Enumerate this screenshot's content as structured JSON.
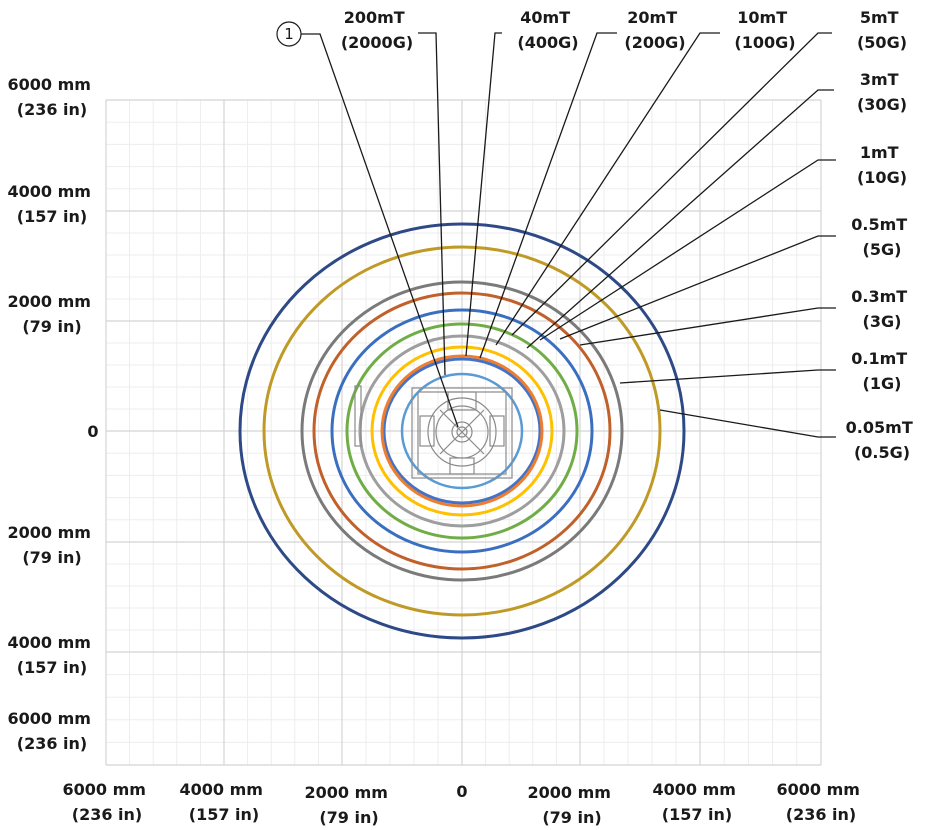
{
  "callout": {
    "number": "1"
  },
  "field_labels": [
    {
      "id": "200mt",
      "line1": "200mT",
      "line2": "(2000G)"
    },
    {
      "id": "40mt",
      "line1": "40mT",
      "line2": "(400G)"
    },
    {
      "id": "20mt",
      "line1": "20mT",
      "line2": "(200G)"
    },
    {
      "id": "10mt",
      "line1": "10mT",
      "line2": "(100G)"
    },
    {
      "id": "5mt",
      "line1": "5mT",
      "line2": "(50G)"
    },
    {
      "id": "3mt",
      "line1": "3mT",
      "line2": "(30G)"
    },
    {
      "id": "1mt",
      "line1": "1mT",
      "line2": "(10G)"
    },
    {
      "id": "05mt",
      "line1": "0.5mT",
      "line2": "(5G)"
    },
    {
      "id": "03mt",
      "line1": "0.3mT",
      "line2": "(3G)"
    },
    {
      "id": "01mt",
      "line1": "0.1mT",
      "line2": "(1G)"
    },
    {
      "id": "005mt",
      "line1": "0.05mT",
      "line2": "(0.5G)"
    }
  ],
  "y_axis": [
    {
      "id": "p6000",
      "line1": "6000 mm",
      "line2": "(236 in)"
    },
    {
      "id": "p4000",
      "line1": "4000 mm",
      "line2": "(157 in)"
    },
    {
      "id": "p2000",
      "line1": "2000 mm",
      "line2": "(79 in)"
    },
    {
      "id": "zero",
      "line1": "0",
      "line2": ""
    },
    {
      "id": "n2000",
      "line1": "2000 mm",
      "line2": "(79 in)"
    },
    {
      "id": "n4000",
      "line1": "4000 mm",
      "line2": "(157 in)"
    },
    {
      "id": "n6000",
      "line1": "6000 mm",
      "line2": "(236 in)"
    }
  ],
  "x_axis": [
    {
      "id": "n6000",
      "line1": "6000 mm",
      "line2": "(236 in)"
    },
    {
      "id": "n4000",
      "line1": "4000 mm",
      "line2": "(157 in)"
    },
    {
      "id": "n2000",
      "line1": "2000 mm",
      "line2": "(79 in)"
    },
    {
      "id": "zero",
      "line1": "0",
      "line2": ""
    },
    {
      "id": "p2000",
      "line1": "2000 mm",
      "line2": "(79 in)"
    },
    {
      "id": "p4000",
      "line1": "4000 mm",
      "line2": "(157 in)"
    },
    {
      "id": "p6000",
      "line1": "6000 mm",
      "line2": "(236 in)"
    }
  ],
  "colors": {
    "grid_major": "#d4d4d4",
    "grid_minor": "#ededed",
    "leader": "#1a1a1a",
    "contours": [
      "#2e4a86",
      "#c09a26",
      "#7a7a7a",
      "#c0602a",
      "#3a6fc0",
      "#70ad47",
      "#9e9e9e",
      "#ffc000",
      "#4472c4",
      "#ed7d31",
      "#5b9bd5"
    ]
  }
}
